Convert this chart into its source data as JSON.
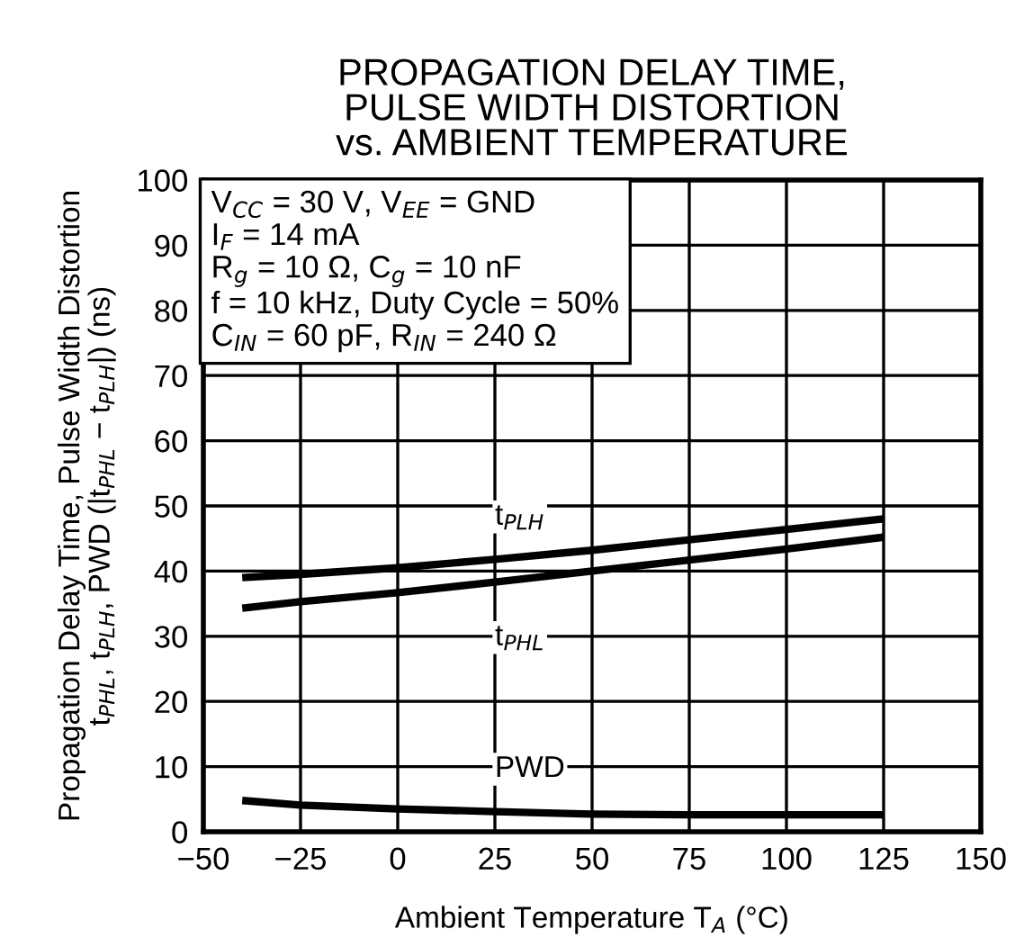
{
  "chart_data": {
    "type": "line",
    "title": "PROPAGATION DELAY TIME,\nPULSE WIDTH DISTORTION\nvs. AMBIENT TEMPERATURE",
    "xlabel": "Ambient Temperature T$_{A}$ (°C)",
    "ylabel": "Propagation Delay Time, Pulse Width Distortion\nt$_{PHL}$, t$_{PLH}$, PWD (|t$_{PHL}$ − t$_{PLH}$|) (ns)",
    "annotations": [
      "V$_{CC}$ = 30 V, V$_{EE}$ = GND\nI$_{F}$ = 14 mA\nR$_{g}$ = 10 Ω, C$_{g}$ = 10 nF\nf = 10 kHz, Duty Cycle = 50%\nC$_{IN}$ = 60 pF, R$_{IN}$ = 240 Ω"
    ],
    "x": [
      -40,
      -25,
      0,
      25,
      50,
      75,
      100,
      125
    ],
    "series": [
      {
        "name": "t$_{PLH}$",
        "color": "#000000",
        "values": [
          39,
          39.5,
          40.5,
          41.8,
          43.2,
          44.8,
          46.4,
          48
        ]
      },
      {
        "name": "t$_{PHL}$",
        "color": "#000000",
        "values": [
          34.3,
          35.3,
          36.7,
          38.3,
          40,
          41.7,
          43.4,
          45.2
        ]
      },
      {
        "name": "PWD",
        "color": "#000000",
        "values": [
          4.8,
          4.1,
          3.5,
          3.1,
          2.7,
          2.6,
          2.6,
          2.6
        ]
      }
    ],
    "xlim": [
      -50,
      150
    ],
    "xticks": [
      {
        "value": -50,
        "label": "−50"
      },
      {
        "value": -25,
        "label": "−25"
      },
      0,
      25,
      50,
      75,
      100,
      125,
      150
    ],
    "ylim": [
      0,
      100
    ],
    "yticks": [
      0,
      10,
      20,
      30,
      40,
      50,
      60,
      70,
      80,
      90,
      100
    ],
    "grid": true,
    "legend": false,
    "marker": "none",
    "line_style": "solid"
  }
}
